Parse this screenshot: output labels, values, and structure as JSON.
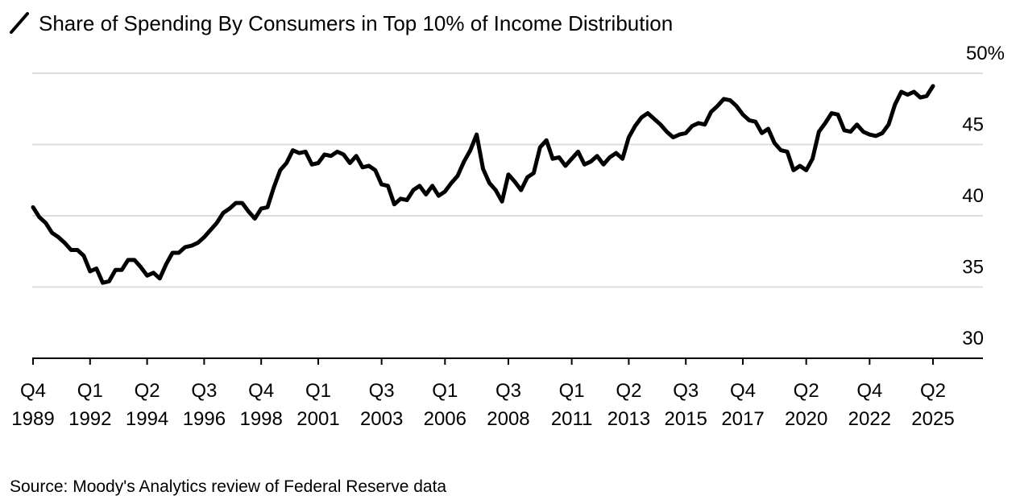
{
  "chart_data": {
    "type": "line",
    "title": "Share of Spending By Consumers in Top 10% of Income Distribution",
    "legend_marker": "diagonal-line-icon",
    "y_unit_suffix": "%",
    "ylim": [
      30,
      50
    ],
    "yticks": [
      30,
      35,
      40,
      45,
      50
    ],
    "grid": true,
    "line_color": "#000000",
    "grid_color": "#dddddd",
    "xlim": [
      1989.875,
      2026.5
    ],
    "xticks": [
      {
        "quarter": "Q4",
        "year": "1989",
        "pos": 1989.875
      },
      {
        "quarter": "Q1",
        "year": "1992",
        "pos": 1992.125
      },
      {
        "quarter": "Q2",
        "year": "1994",
        "pos": 1994.375
      },
      {
        "quarter": "Q3",
        "year": "1996",
        "pos": 1996.625
      },
      {
        "quarter": "Q4",
        "year": "1998",
        "pos": 1998.875
      },
      {
        "quarter": "Q1",
        "year": "2001",
        "pos": 2001.125
      },
      {
        "quarter": "Q3",
        "year": "2003",
        "pos": 2003.625
      },
      {
        "quarter": "Q1",
        "year": "2006",
        "pos": 2006.125
      },
      {
        "quarter": "Q3",
        "year": "2008",
        "pos": 2008.625
      },
      {
        "quarter": "Q1",
        "year": "2011",
        "pos": 2011.125
      },
      {
        "quarter": "Q2",
        "year": "2013",
        "pos": 2013.375
      },
      {
        "quarter": "Q3",
        "year": "2015",
        "pos": 2015.625
      },
      {
        "quarter": "Q4",
        "year": "2017",
        "pos": 2017.875
      },
      {
        "quarter": "Q2",
        "year": "2020",
        "pos": 2020.375
      },
      {
        "quarter": "Q4",
        "year": "2022",
        "pos": 2022.875
      },
      {
        "quarter": "Q2",
        "year": "2025",
        "pos": 2025.375
      }
    ],
    "series": [
      {
        "values": [
          [
            1989.875,
            40.6
          ],
          [
            1990.125,
            39.9
          ],
          [
            1990.375,
            39.5
          ],
          [
            1990.625,
            38.8
          ],
          [
            1990.875,
            38.5
          ],
          [
            1991.125,
            38.1
          ],
          [
            1991.375,
            37.6
          ],
          [
            1991.625,
            37.6
          ],
          [
            1991.875,
            37.2
          ],
          [
            1992.125,
            36.1
          ],
          [
            1992.375,
            36.3
          ],
          [
            1992.625,
            35.3
          ],
          [
            1992.875,
            35.4
          ],
          [
            1993.125,
            36.2
          ],
          [
            1993.375,
            36.2
          ],
          [
            1993.625,
            36.9
          ],
          [
            1993.875,
            36.9
          ],
          [
            1994.125,
            36.4
          ],
          [
            1994.375,
            35.8
          ],
          [
            1994.625,
            36.0
          ],
          [
            1994.875,
            35.6
          ],
          [
            1995.125,
            36.6
          ],
          [
            1995.375,
            37.4
          ],
          [
            1995.625,
            37.4
          ],
          [
            1995.875,
            37.8
          ],
          [
            1996.125,
            37.9
          ],
          [
            1996.375,
            38.1
          ],
          [
            1996.625,
            38.5
          ],
          [
            1996.875,
            39.0
          ],
          [
            1997.125,
            39.5
          ],
          [
            1997.375,
            40.2
          ],
          [
            1997.625,
            40.5
          ],
          [
            1997.875,
            40.9
          ],
          [
            1998.125,
            40.9
          ],
          [
            1998.375,
            40.3
          ],
          [
            1998.625,
            39.8
          ],
          [
            1998.875,
            40.5
          ],
          [
            1999.125,
            40.6
          ],
          [
            1999.375,
            42.0
          ],
          [
            1999.625,
            43.2
          ],
          [
            1999.875,
            43.7
          ],
          [
            2000.125,
            44.6
          ],
          [
            2000.375,
            44.4
          ],
          [
            2000.625,
            44.5
          ],
          [
            2000.875,
            43.6
          ],
          [
            2001.125,
            43.7
          ],
          [
            2001.375,
            44.3
          ],
          [
            2001.625,
            44.2
          ],
          [
            2001.875,
            44.5
          ],
          [
            2002.125,
            44.3
          ],
          [
            2002.375,
            43.7
          ],
          [
            2002.625,
            44.2
          ],
          [
            2002.875,
            43.4
          ],
          [
            2003.125,
            43.5
          ],
          [
            2003.375,
            43.2
          ],
          [
            2003.625,
            42.2
          ],
          [
            2003.875,
            42.1
          ],
          [
            2004.125,
            40.8
          ],
          [
            2004.375,
            41.2
          ],
          [
            2004.625,
            41.1
          ],
          [
            2004.875,
            41.8
          ],
          [
            2005.125,
            42.1
          ],
          [
            2005.375,
            41.5
          ],
          [
            2005.625,
            42.1
          ],
          [
            2005.875,
            41.4
          ],
          [
            2006.125,
            41.7
          ],
          [
            2006.375,
            42.3
          ],
          [
            2006.625,
            42.8
          ],
          [
            2006.875,
            43.8
          ],
          [
            2007.125,
            44.6
          ],
          [
            2007.375,
            45.7
          ],
          [
            2007.625,
            43.3
          ],
          [
            2007.875,
            42.3
          ],
          [
            2008.125,
            41.8
          ],
          [
            2008.375,
            41.0
          ],
          [
            2008.625,
            42.9
          ],
          [
            2008.875,
            42.4
          ],
          [
            2009.125,
            41.8
          ],
          [
            2009.375,
            42.7
          ],
          [
            2009.625,
            43.0
          ],
          [
            2009.875,
            44.8
          ],
          [
            2010.125,
            45.3
          ],
          [
            2010.375,
            44.0
          ],
          [
            2010.625,
            44.1
          ],
          [
            2010.875,
            43.5
          ],
          [
            2011.125,
            44.0
          ],
          [
            2011.375,
            44.5
          ],
          [
            2011.625,
            43.6
          ],
          [
            2011.875,
            43.8
          ],
          [
            2012.125,
            44.2
          ],
          [
            2012.375,
            43.6
          ],
          [
            2012.625,
            44.1
          ],
          [
            2012.875,
            44.4
          ],
          [
            2013.125,
            44.0
          ],
          [
            2013.375,
            45.5
          ],
          [
            2013.625,
            46.3
          ],
          [
            2013.875,
            46.9
          ],
          [
            2014.125,
            47.2
          ],
          [
            2014.375,
            46.8
          ],
          [
            2014.625,
            46.4
          ],
          [
            2014.875,
            45.9
          ],
          [
            2015.125,
            45.5
          ],
          [
            2015.375,
            45.7
          ],
          [
            2015.625,
            45.8
          ],
          [
            2015.875,
            46.3
          ],
          [
            2016.125,
            46.5
          ],
          [
            2016.375,
            46.4
          ],
          [
            2016.625,
            47.3
          ],
          [
            2016.875,
            47.7
          ],
          [
            2017.125,
            48.2
          ],
          [
            2017.375,
            48.1
          ],
          [
            2017.625,
            47.7
          ],
          [
            2017.875,
            47.1
          ],
          [
            2018.125,
            46.7
          ],
          [
            2018.375,
            46.6
          ],
          [
            2018.625,
            45.8
          ],
          [
            2018.875,
            46.1
          ],
          [
            2019.125,
            45.1
          ],
          [
            2019.375,
            44.6
          ],
          [
            2019.625,
            44.5
          ],
          [
            2019.875,
            43.2
          ],
          [
            2020.125,
            43.5
          ],
          [
            2020.375,
            43.2
          ],
          [
            2020.625,
            44.0
          ],
          [
            2020.875,
            45.9
          ],
          [
            2021.125,
            46.5
          ],
          [
            2021.375,
            47.2
          ],
          [
            2021.625,
            47.1
          ],
          [
            2021.875,
            46.0
          ],
          [
            2022.125,
            45.9
          ],
          [
            2022.375,
            46.4
          ],
          [
            2022.625,
            45.9
          ],
          [
            2022.875,
            45.7
          ],
          [
            2023.125,
            45.6
          ],
          [
            2023.375,
            45.8
          ],
          [
            2023.625,
            46.4
          ],
          [
            2023.875,
            47.8
          ],
          [
            2024.125,
            48.7
          ],
          [
            2024.375,
            48.5
          ],
          [
            2024.625,
            48.7
          ],
          [
            2024.875,
            48.3
          ],
          [
            2025.125,
            48.4
          ],
          [
            2025.375,
            49.1
          ]
        ]
      }
    ]
  },
  "source": "Source: Moody's Analytics review of Federal Reserve data"
}
